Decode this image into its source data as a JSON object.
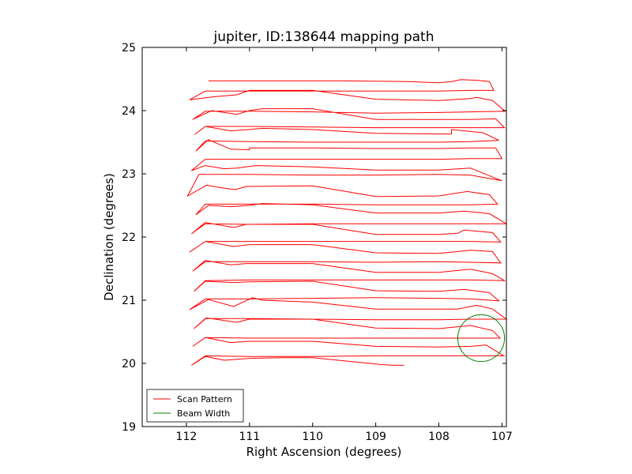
{
  "chart_data": {
    "type": "line",
    "title": "jupiter, ID:138644 mapping path",
    "xlabel": "Right Ascension (degrees)",
    "ylabel": "Declination (degrees)",
    "xlim": [
      112.7,
      106.93
    ],
    "ylim": [
      19,
      25
    ],
    "x_ticks": [
      "112",
      "111",
      "110",
      "109",
      "108",
      "107"
    ],
    "y_ticks": [
      "19",
      "20",
      "21",
      "22",
      "23",
      "24",
      "25"
    ],
    "grid": false,
    "legend_position": "lower-left",
    "series": [
      {
        "name": "Scan Pattern",
        "color": "#ff0000",
        "points": [
          [
            111.65,
            24.47
          ],
          [
            110.5,
            24.47
          ],
          [
            109.5,
            24.47
          ],
          [
            108.5,
            24.46
          ],
          [
            108.0,
            24.44
          ],
          [
            107.8,
            24.46
          ],
          [
            107.65,
            24.49
          ],
          [
            107.4,
            24.48
          ],
          [
            107.2,
            24.46
          ],
          [
            107.13,
            24.32
          ],
          [
            107.5,
            24.32
          ],
          [
            108.0,
            24.31
          ],
          [
            109.0,
            24.31
          ],
          [
            110.0,
            24.31
          ],
          [
            111.0,
            24.31
          ],
          [
            111.7,
            24.31
          ],
          [
            111.95,
            24.17
          ],
          [
            111.55,
            24.22
          ],
          [
            111.2,
            24.25
          ],
          [
            111.0,
            24.32
          ],
          [
            110.0,
            24.32
          ],
          [
            109.0,
            24.18
          ],
          [
            108.0,
            24.16
          ],
          [
            107.5,
            24.19
          ],
          [
            107.4,
            24.21
          ],
          [
            107.15,
            24.16
          ],
          [
            106.95,
            23.99
          ],
          [
            107.5,
            23.98
          ],
          [
            108.0,
            23.97
          ],
          [
            109.0,
            23.96
          ],
          [
            110.0,
            23.98
          ],
          [
            111.0,
            23.99
          ],
          [
            111.7,
            23.99
          ],
          [
            111.9,
            23.86
          ],
          [
            111.6,
            24.0
          ],
          [
            111.2,
            23.94
          ],
          [
            111.0,
            24.0
          ],
          [
            110.8,
            24.03
          ],
          [
            110.0,
            24.03
          ],
          [
            109.0,
            23.86
          ],
          [
            108.0,
            23.86
          ],
          [
            107.5,
            23.86
          ],
          [
            107.1,
            23.87
          ],
          [
            106.96,
            23.73
          ],
          [
            107.5,
            23.73
          ],
          [
            108.0,
            23.73
          ],
          [
            109.0,
            23.73
          ],
          [
            110.0,
            23.74
          ],
          [
            111.0,
            23.75
          ],
          [
            111.7,
            23.75
          ],
          [
            111.87,
            23.62
          ],
          [
            111.7,
            23.75
          ],
          [
            111.3,
            23.68
          ],
          [
            111.0,
            23.7
          ],
          [
            110.8,
            23.72
          ],
          [
            110.0,
            23.7
          ],
          [
            109.0,
            23.64
          ],
          [
            108.0,
            23.63
          ],
          [
            107.8,
            23.63
          ],
          [
            107.8,
            23.7
          ],
          [
            107.3,
            23.65
          ],
          [
            107.05,
            23.53
          ],
          [
            107.5,
            23.51
          ],
          [
            108.0,
            23.5
          ],
          [
            109.0,
            23.5
          ],
          [
            110.0,
            23.5
          ],
          [
            111.0,
            23.51
          ],
          [
            111.7,
            23.52
          ],
          [
            111.85,
            23.36
          ],
          [
            111.65,
            23.54
          ],
          [
            111.3,
            23.39
          ],
          [
            111.0,
            23.38
          ],
          [
            111.0,
            23.41
          ],
          [
            110.0,
            23.41
          ],
          [
            109.0,
            23.4
          ],
          [
            108.0,
            23.4
          ],
          [
            107.5,
            23.41
          ],
          [
            107.1,
            23.41
          ],
          [
            107.0,
            23.24
          ],
          [
            107.5,
            23.24
          ],
          [
            108.0,
            23.23
          ],
          [
            109.0,
            23.23
          ],
          [
            110.0,
            23.23
          ],
          [
            111.0,
            23.23
          ],
          [
            111.7,
            23.23
          ],
          [
            111.92,
            23.05
          ],
          [
            111.7,
            23.13
          ],
          [
            111.4,
            23.08
          ],
          [
            111.2,
            23.09
          ],
          [
            110.9,
            23.13
          ],
          [
            110.0,
            23.11
          ],
          [
            109.0,
            23.06
          ],
          [
            108.0,
            23.06
          ],
          [
            107.5,
            23.09
          ],
          [
            107.3,
            23.01
          ],
          [
            107.0,
            22.89
          ],
          [
            107.5,
            22.98
          ],
          [
            108.0,
            22.99
          ],
          [
            109.0,
            22.98
          ],
          [
            110.0,
            22.98
          ],
          [
            111.0,
            22.99
          ],
          [
            111.8,
            22.99
          ],
          [
            111.98,
            22.65
          ],
          [
            111.68,
            22.82
          ],
          [
            111.45,
            22.78
          ],
          [
            111.22,
            22.75
          ],
          [
            111.05,
            22.8
          ],
          [
            110.0,
            22.81
          ],
          [
            109.0,
            22.64
          ],
          [
            108.0,
            22.65
          ],
          [
            107.55,
            22.72
          ],
          [
            107.2,
            22.67
          ],
          [
            107.07,
            22.52
          ],
          [
            107.5,
            22.51
          ],
          [
            108.0,
            22.51
          ],
          [
            109.0,
            22.51
          ],
          [
            110.0,
            22.52
          ],
          [
            111.0,
            22.52
          ],
          [
            111.7,
            22.52
          ],
          [
            111.85,
            22.35
          ],
          [
            111.65,
            22.5
          ],
          [
            111.3,
            22.48
          ],
          [
            111.0,
            22.5
          ],
          [
            110.8,
            22.53
          ],
          [
            110.0,
            22.51
          ],
          [
            109.0,
            22.38
          ],
          [
            108.0,
            22.38
          ],
          [
            107.6,
            22.41
          ],
          [
            107.2,
            22.37
          ],
          [
            106.93,
            22.21
          ],
          [
            107.5,
            22.21
          ],
          [
            108.0,
            22.21
          ],
          [
            109.0,
            22.21
          ],
          [
            110.0,
            22.21
          ],
          [
            111.0,
            22.2
          ],
          [
            111.7,
            22.21
          ],
          [
            111.92,
            22.05
          ],
          [
            111.7,
            22.23
          ],
          [
            111.25,
            22.15
          ],
          [
            111.05,
            22.2
          ],
          [
            110.0,
            22.2
          ],
          [
            109.0,
            22.04
          ],
          [
            108.0,
            22.04
          ],
          [
            107.7,
            22.06
          ],
          [
            107.6,
            22.11
          ],
          [
            107.15,
            22.07
          ],
          [
            107.02,
            21.92
          ],
          [
            107.5,
            21.93
          ],
          [
            108.0,
            21.93
          ],
          [
            109.0,
            21.93
          ],
          [
            110.0,
            21.93
          ],
          [
            111.0,
            21.93
          ],
          [
            111.7,
            21.93
          ],
          [
            111.95,
            21.76
          ],
          [
            111.7,
            21.93
          ],
          [
            111.25,
            21.85
          ],
          [
            111.0,
            21.88
          ],
          [
            110.0,
            21.88
          ],
          [
            109.0,
            21.75
          ],
          [
            108.0,
            21.74
          ],
          [
            107.5,
            21.79
          ],
          [
            107.15,
            21.77
          ],
          [
            107.02,
            21.59
          ],
          [
            107.5,
            21.6
          ],
          [
            108.0,
            21.61
          ],
          [
            109.0,
            21.6
          ],
          [
            110.0,
            21.61
          ],
          [
            111.0,
            21.61
          ],
          [
            111.7,
            21.61
          ],
          [
            111.9,
            21.46
          ],
          [
            111.7,
            21.63
          ],
          [
            111.3,
            21.56
          ],
          [
            111.05,
            21.58
          ],
          [
            110.0,
            21.58
          ],
          [
            109.0,
            21.44
          ],
          [
            108.0,
            21.44
          ],
          [
            107.5,
            21.49
          ],
          [
            107.15,
            21.42
          ],
          [
            106.96,
            21.31
          ],
          [
            107.5,
            21.32
          ],
          [
            108.0,
            21.32
          ],
          [
            109.0,
            21.32
          ],
          [
            110.0,
            21.32
          ],
          [
            111.0,
            21.32
          ],
          [
            111.7,
            21.31
          ],
          [
            111.88,
            21.14
          ],
          [
            111.7,
            21.3
          ],
          [
            111.25,
            21.28
          ],
          [
            111.0,
            21.29
          ],
          [
            110.0,
            21.3
          ],
          [
            109.0,
            21.15
          ],
          [
            108.0,
            21.14
          ],
          [
            107.6,
            21.17
          ],
          [
            107.2,
            21.12
          ],
          [
            107.05,
            20.99
          ],
          [
            107.5,
            21.02
          ],
          [
            108.0,
            21.03
          ],
          [
            109.0,
            21.04
          ],
          [
            110.0,
            21.03
          ],
          [
            111.0,
            21.02
          ],
          [
            111.7,
            21.02
          ],
          [
            111.95,
            20.85
          ],
          [
            111.65,
            21.01
          ],
          [
            111.25,
            20.9
          ],
          [
            110.95,
            21.04
          ],
          [
            110.8,
            21.0
          ],
          [
            110.0,
            20.97
          ],
          [
            109.0,
            20.86
          ],
          [
            108.0,
            20.86
          ],
          [
            107.7,
            20.86
          ],
          [
            107.4,
            20.92
          ],
          [
            107.15,
            20.86
          ],
          [
            106.93,
            20.7
          ],
          [
            107.5,
            20.7
          ],
          [
            108.0,
            20.69
          ],
          [
            109.0,
            20.69
          ],
          [
            110.0,
            20.7
          ],
          [
            111.0,
            20.71
          ],
          [
            111.7,
            20.71
          ],
          [
            111.88,
            20.55
          ],
          [
            111.68,
            20.72
          ],
          [
            111.2,
            20.65
          ],
          [
            111.0,
            20.7
          ],
          [
            110.0,
            20.7
          ],
          [
            109.0,
            20.56
          ],
          [
            108.0,
            20.55
          ],
          [
            107.5,
            20.6
          ],
          [
            107.15,
            20.52
          ],
          [
            107.03,
            20.4
          ],
          [
            107.5,
            20.4
          ],
          [
            108.0,
            20.4
          ],
          [
            109.0,
            20.4
          ],
          [
            110.0,
            20.4
          ],
          [
            111.0,
            20.4
          ],
          [
            111.7,
            20.41
          ],
          [
            111.9,
            20.27
          ],
          [
            111.7,
            20.41
          ],
          [
            111.3,
            20.33
          ],
          [
            111.0,
            20.35
          ],
          [
            110.0,
            20.35
          ],
          [
            109.0,
            20.27
          ],
          [
            108.0,
            20.26
          ],
          [
            107.5,
            20.27
          ],
          [
            107.25,
            20.29
          ],
          [
            106.97,
            20.12
          ],
          [
            107.5,
            20.12
          ],
          [
            108.0,
            20.12
          ],
          [
            109.0,
            20.12
          ],
          [
            110.0,
            20.11
          ],
          [
            111.0,
            20.11
          ],
          [
            111.7,
            20.12
          ],
          [
            111.92,
            19.97
          ],
          [
            111.7,
            20.11
          ],
          [
            111.4,
            20.05
          ],
          [
            111.0,
            20.08
          ],
          [
            110.5,
            20.09
          ],
          [
            110.0,
            20.09
          ],
          [
            109.0,
            19.99
          ],
          [
            108.9,
            19.98
          ],
          [
            108.7,
            19.97
          ],
          [
            108.55,
            19.97
          ]
        ]
      },
      {
        "name": "Beam Width",
        "color": "#008000",
        "center": [
          107.33,
          20.4
        ],
        "radius": 0.37
      }
    ]
  }
}
